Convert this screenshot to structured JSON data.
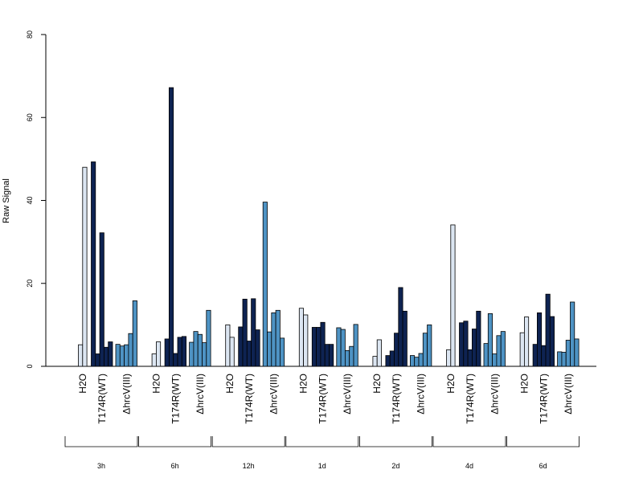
{
  "chart_data": {
    "type": "bar",
    "ylabel": "Raw Signal",
    "ylim": [
      0,
      80
    ],
    "yticks": [
      0,
      20,
      40,
      60,
      80
    ],
    "timepoints": [
      "3h",
      "6h",
      "12h",
      "1d",
      "2d",
      "4d",
      "6d"
    ],
    "conditions": [
      "H2O",
      "T174R(WT)",
      "ΔhrcV(III)"
    ],
    "colors": {
      "H2O": "#dce6f2",
      "T174R(WT)": "#0e2352",
      "ΔhrcV(III)": "#4e93c4"
    },
    "groups": [
      {
        "timepoint": "3h",
        "H2O": [
          5.2,
          48.0
        ],
        "T174R(WT)": [
          49.3,
          3.0,
          32.2,
          4.6,
          5.9
        ],
        "ΔhrcV(III)": [
          5.3,
          4.9,
          5.2,
          7.9,
          15.8
        ]
      },
      {
        "timepoint": "6h",
        "H2O": [
          3.0,
          5.9
        ],
        "T174R(WT)": [
          6.6,
          67.2,
          3.1,
          7.0,
          7.2
        ],
        "ΔhrcV(III)": [
          5.8,
          8.4,
          7.7,
          5.7,
          13.5
        ]
      },
      {
        "timepoint": "12h",
        "H2O": [
          10.0,
          7.0
        ],
        "T174R(WT)": [
          9.5,
          16.2,
          6.1,
          16.3,
          8.8
        ],
        "ΔhrcV(III)": [
          39.6,
          8.3,
          12.9,
          13.5,
          6.8
        ]
      },
      {
        "timepoint": "1d",
        "H2O": [
          14.0,
          12.4
        ],
        "T174R(WT)": [
          9.4,
          9.4,
          10.6,
          5.3,
          5.3
        ],
        "ΔhrcV(III)": [
          9.3,
          8.9,
          3.8,
          4.8,
          10.1
        ]
      },
      {
        "timepoint": "2d",
        "H2O": [
          2.4,
          6.4
        ],
        "T174R(WT)": [
          2.6,
          3.7,
          8.0,
          19.0,
          13.3
        ],
        "ΔhrcV(III)": [
          2.6,
          2.2,
          3.1,
          8.0,
          10.0
        ]
      },
      {
        "timepoint": "4d",
        "H2O": [
          4.0,
          34.1
        ],
        "T174R(WT)": [
          10.5,
          10.9,
          4.0,
          9.0,
          13.3
        ],
        "ΔhrcV(III)": [
          5.5,
          12.7,
          3.0,
          7.4,
          8.4
        ]
      },
      {
        "timepoint": "6d",
        "H2O": [
          8.1,
          11.9
        ],
        "T174R(WT)": [
          5.3,
          12.9,
          5.0,
          17.4,
          12.0
        ],
        "ΔhrcV(III)": [
          3.5,
          3.4,
          6.3,
          15.5,
          6.6
        ]
      }
    ]
  }
}
